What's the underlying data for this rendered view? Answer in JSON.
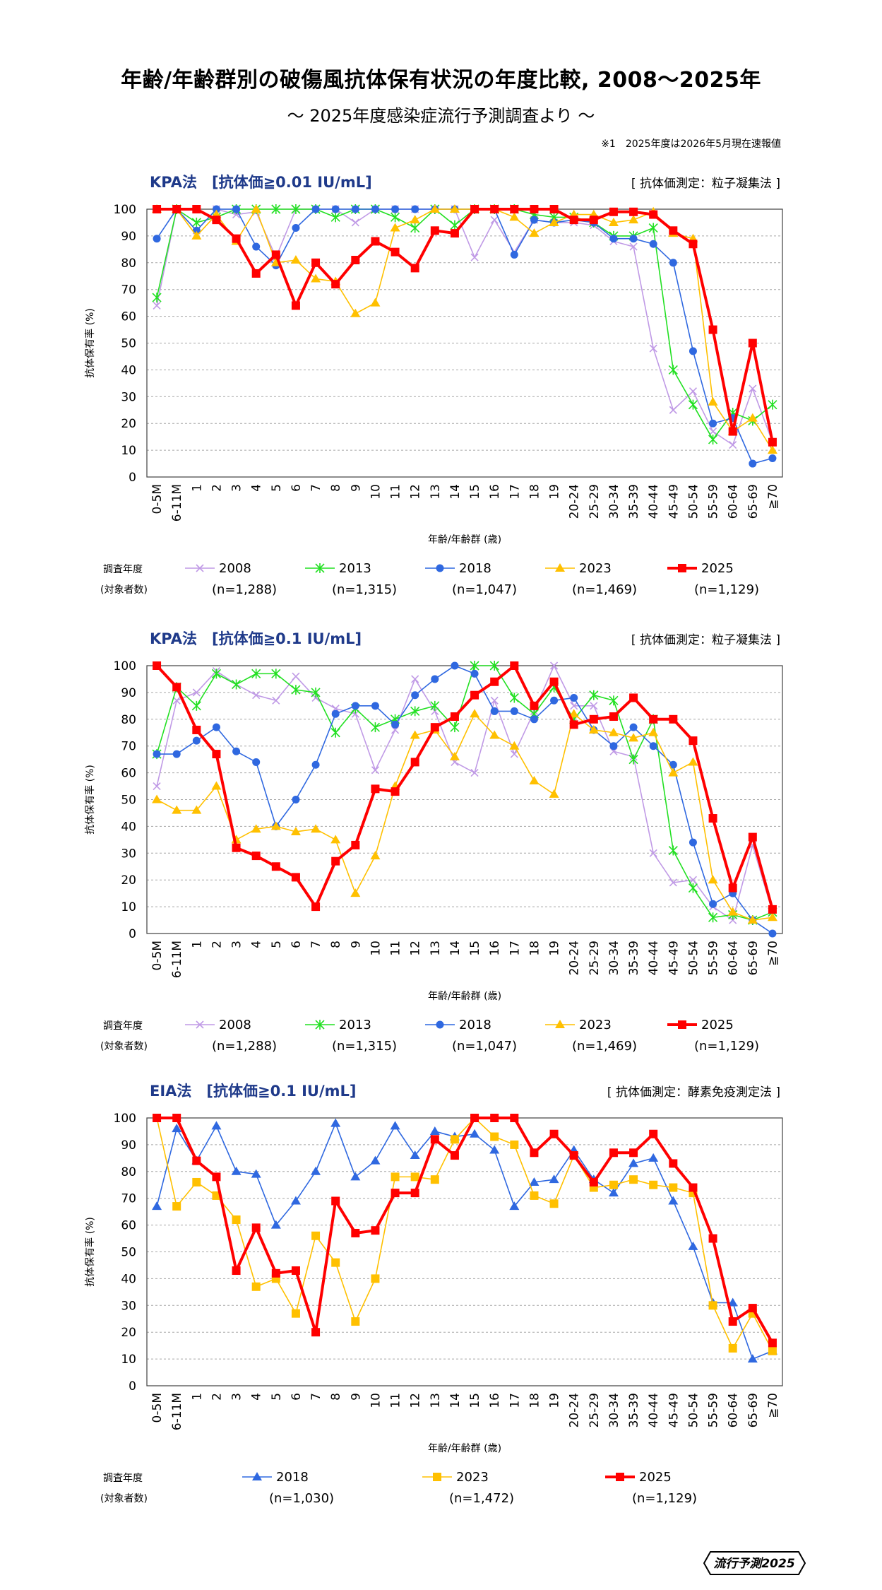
{
  "header": {
    "title": "年齢/年齢群別の破傷風抗体保有状況の年度比較, 2008〜2025年",
    "subtitle": "〜 2025年度感染症流行予測調査より 〜",
    "note": "※1　2025年度は2026年5月現在速報値"
  },
  "badge": "流行予測2025",
  "legend_label_line1": "調査年度",
  "legend_label_line2": "(対象者数)",
  "colors": {
    "2008": "#c09ae6",
    "2013": "#22e022",
    "2018": "#2f68e0",
    "2023": "#ffc000",
    "2025": "#ff0000",
    "title_accent": "#1f3a8a"
  },
  "chart_data": [
    {
      "type": "line",
      "title": "KPA法　[抗体価≧0.01 IU/mL]",
      "method": "[ 抗体価測定：粒子凝集法 ]",
      "xlabel": "年齢/年齢群 (歳)",
      "ylabel": "抗体保有率 (%)",
      "ylim": [
        0,
        100
      ],
      "yticks": [
        0,
        10,
        20,
        30,
        40,
        50,
        60,
        70,
        80,
        90,
        100
      ],
      "grid": true,
      "categories": [
        "0-5M",
        "6-11M",
        "1",
        "2",
        "3",
        "4",
        "5",
        "6",
        "7",
        "8",
        "9",
        "10",
        "11",
        "12",
        "13",
        "14",
        "15",
        "16",
        "17",
        "18",
        "19",
        "20-24",
        "25-29",
        "30-34",
        "35-39",
        "40-44",
        "45-49",
        "50-54",
        "55-59",
        "60-64",
        "65-69",
        "≧70"
      ],
      "series": [
        {
          "name": "2008",
          "n": "(n=1,288)",
          "marker": "x",
          "values": [
            64,
            100,
            92,
            100,
            98,
            99,
            82,
            100,
            100,
            100,
            95,
            100,
            100,
            100,
            100,
            100,
            82,
            96,
            84,
            96,
            95,
            95,
            94,
            88,
            86,
            48,
            25,
            32,
            17,
            12,
            33,
            13
          ]
        },
        {
          "name": "2013",
          "n": "(n=1,315)",
          "marker": "asterisk",
          "values": [
            67,
            100,
            95,
            97,
            100,
            100,
            100,
            100,
            100,
            97,
            100,
            100,
            97,
            93,
            100,
            94,
            100,
            100,
            100,
            98,
            97,
            97,
            95,
            90,
            90,
            93,
            40,
            27,
            14,
            24,
            21,
            27
          ]
        },
        {
          "name": "2018",
          "n": "(n=1,047)",
          "marker": "circle",
          "values": [
            89,
            100,
            92,
            100,
            100,
            86,
            79,
            93,
            100,
            100,
            100,
            100,
            100,
            100,
            100,
            100,
            100,
            100,
            83,
            96,
            95,
            96,
            95,
            89,
            89,
            87,
            80,
            47,
            20,
            22,
            5,
            7
          ]
        },
        {
          "name": "2023",
          "n": "(n=1,469)",
          "marker": "triangle",
          "values": [
            100,
            100,
            90,
            98,
            88,
            100,
            80,
            81,
            74,
            73,
            61,
            65,
            93,
            96,
            100,
            100,
            100,
            100,
            97,
            91,
            95,
            98,
            98,
            95,
            96,
            99,
            91,
            89,
            28,
            17,
            22,
            10
          ]
        },
        {
          "name": "2025",
          "n": "(n=1,129)",
          "marker": "square",
          "values": [
            100,
            100,
            100,
            96,
            89,
            76,
            83,
            64,
            80,
            72,
            81,
            88,
            84,
            78,
            92,
            91,
            100,
            100,
            100,
            100,
            100,
            96,
            96,
            99,
            99,
            98,
            92,
            87,
            55,
            17,
            50,
            13
          ]
        }
      ]
    },
    {
      "type": "line",
      "title": "KPA法　[抗体価≧0.1 IU/mL]",
      "method": "[ 抗体価測定：粒子凝集法 ]",
      "xlabel": "年齢/年齢群 (歳)",
      "ylabel": "抗体保有率 (%)",
      "ylim": [
        0,
        100
      ],
      "yticks": [
        0,
        10,
        20,
        30,
        40,
        50,
        60,
        70,
        80,
        90,
        100
      ],
      "grid": true,
      "categories": [
        "0-5M",
        "6-11M",
        "1",
        "2",
        "3",
        "4",
        "5",
        "6",
        "7",
        "8",
        "9",
        "10",
        "11",
        "12",
        "13",
        "14",
        "15",
        "16",
        "17",
        "18",
        "19",
        "20-24",
        "25-29",
        "30-34",
        "35-39",
        "40-44",
        "45-49",
        "50-54",
        "55-59",
        "60-64",
        "65-69",
        "≧70"
      ],
      "series": [
        {
          "name": "2008",
          "n": "(n=1,288)",
          "marker": "x",
          "values": [
            55,
            87,
            90,
            98,
            93,
            89,
            87,
            96,
            88,
            84,
            82,
            61,
            76,
            95,
            83,
            64,
            60,
            87,
            67,
            83,
            100,
            85,
            85,
            68,
            66,
            30,
            19,
            20,
            10,
            5,
            33,
            8
          ]
        },
        {
          "name": "2013",
          "n": "(n=1,315)",
          "marker": "asterisk",
          "values": [
            67,
            92,
            85,
            97,
            93,
            97,
            97,
            91,
            90,
            75,
            84,
            77,
            80,
            83,
            85,
            77,
            100,
            100,
            88,
            82,
            92,
            80,
            89,
            87,
            65,
            80,
            31,
            17,
            6,
            7,
            5,
            8
          ]
        },
        {
          "name": "2018",
          "n": "(n=1,047)",
          "marker": "circle",
          "values": [
            67,
            67,
            72,
            77,
            68,
            64,
            40,
            50,
            63,
            82,
            85,
            85,
            78,
            89,
            95,
            100,
            97,
            83,
            83,
            80,
            87,
            88,
            76,
            70,
            77,
            70,
            63,
            34,
            11,
            15,
            5,
            0
          ]
        },
        {
          "name": "2023",
          "n": "(n=1,469)",
          "marker": "triangle",
          "values": [
            50,
            46,
            46,
            55,
            35,
            39,
            40,
            38,
            39,
            35,
            15,
            29,
            55,
            74,
            76,
            66,
            82,
            74,
            70,
            57,
            52,
            82,
            76,
            75,
            73,
            75,
            60,
            64,
            20,
            8,
            5,
            6
          ]
        },
        {
          "name": "2025",
          "n": "(n=1,129)",
          "marker": "square",
          "values": [
            100,
            92,
            76,
            67,
            32,
            29,
            25,
            21,
            10,
            27,
            33,
            54,
            53,
            64,
            77,
            81,
            89,
            94,
            100,
            85,
            94,
            78,
            80,
            81,
            88,
            80,
            80,
            72,
            43,
            17,
            36,
            9
          ]
        }
      ]
    },
    {
      "type": "line",
      "title": "EIA法　[抗体価≧0.1 IU/mL]",
      "method": "[ 抗体価測定：酵素免疫測定法 ]",
      "xlabel": "年齢/年齢群 (歳)",
      "ylabel": "抗体保有率 (%)",
      "ylim": [
        0,
        100
      ],
      "yticks": [
        0,
        10,
        20,
        30,
        40,
        50,
        60,
        70,
        80,
        90,
        100
      ],
      "grid": true,
      "categories": [
        "0-5M",
        "6-11M",
        "1",
        "2",
        "3",
        "4",
        "5",
        "6",
        "7",
        "8",
        "9",
        "10",
        "11",
        "12",
        "13",
        "14",
        "15",
        "16",
        "17",
        "18",
        "19",
        "20-24",
        "25-29",
        "30-34",
        "35-39",
        "40-44",
        "45-49",
        "50-54",
        "55-59",
        "60-64",
        "65-69",
        "≧70"
      ],
      "series": [
        {
          "name": "2018",
          "n": "(n=1,030)",
          "marker": "triangle",
          "values": [
            67,
            96,
            84,
            97,
            80,
            79,
            60,
            69,
            80,
            98,
            78,
            84,
            97,
            86,
            95,
            93,
            94,
            88,
            67,
            76,
            77,
            88,
            77,
            72,
            83,
            85,
            69,
            52,
            31,
            31,
            10,
            13
          ]
        },
        {
          "name": "2023",
          "n": "(n=1,472)",
          "marker": "square",
          "values": [
            100,
            67,
            76,
            71,
            62,
            37,
            40,
            27,
            56,
            46,
            24,
            40,
            78,
            78,
            77,
            92,
            100,
            93,
            90,
            71,
            68,
            86,
            74,
            75,
            77,
            75,
            74,
            72,
            30,
            14,
            27,
            13
          ]
        },
        {
          "name": "2025",
          "n": "(n=1,129)",
          "marker": "square",
          "values": [
            100,
            100,
            84,
            78,
            43,
            59,
            42,
            43,
            20,
            69,
            57,
            58,
            72,
            72,
            92,
            86,
            100,
            100,
            100,
            87,
            94,
            86,
            76,
            87,
            87,
            94,
            83,
            74,
            55,
            24,
            29,
            16
          ]
        }
      ]
    }
  ]
}
